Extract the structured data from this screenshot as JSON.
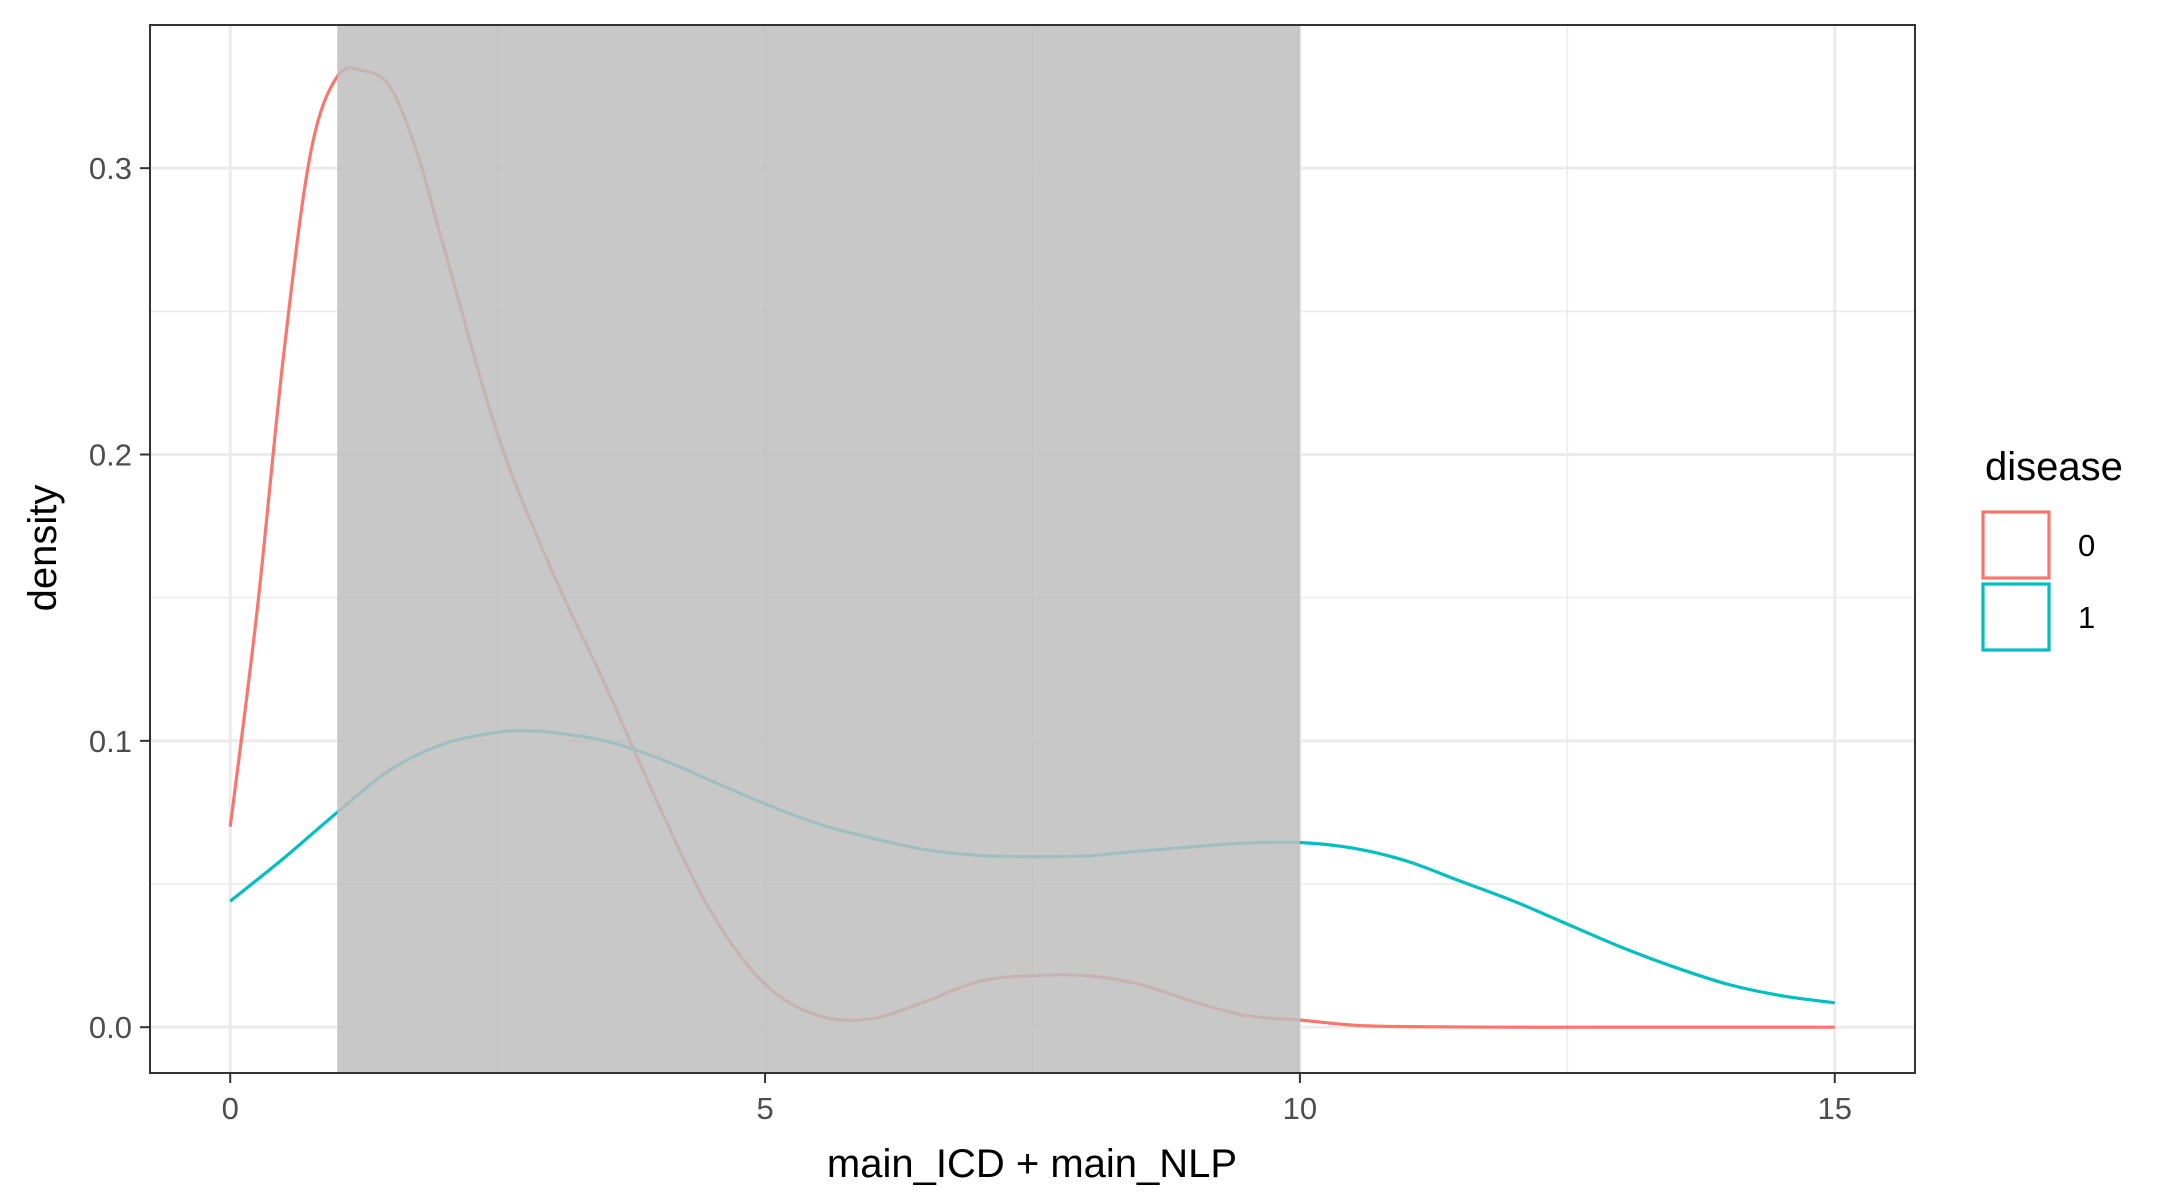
{
  "chart_data": {
    "type": "line",
    "subtype": "density",
    "xlabel": "main_ICD + main_NLP",
    "ylabel": "density",
    "xlim": [
      -0.75,
      15.75
    ],
    "ylim": [
      -0.016,
      0.35
    ],
    "x_ticks": [
      0,
      5,
      10,
      15
    ],
    "x_tick_labels": [
      "0",
      "5",
      "10",
      "15"
    ],
    "y_ticks": [
      0.0,
      0.1,
      0.2,
      0.3
    ],
    "y_tick_labels": [
      "0.0",
      "0.1",
      "0.2",
      "0.3"
    ],
    "grid": true,
    "shaded_region": {
      "x_start": 1,
      "x_end": 10,
      "color": "#bebebe",
      "opacity": 0.85
    },
    "legend": {
      "title": "disease",
      "position": "right",
      "entries": [
        {
          "label": "0",
          "color": "#F8766D"
        },
        {
          "label": "1",
          "color": "#00BFC4"
        }
      ]
    },
    "series": [
      {
        "name": "0",
        "color": "#F8766D",
        "x": [
          0,
          0.25,
          0.5,
          0.75,
          1.0,
          1.25,
          1.5,
          1.75,
          2.0,
          2.5,
          3.0,
          3.5,
          4.0,
          4.5,
          5.0,
          5.5,
          6.0,
          6.5,
          7.0,
          7.5,
          8.0,
          8.5,
          9.0,
          9.5,
          10.0,
          10.5,
          11.0,
          12.0,
          13.0,
          14.0,
          15.0
        ],
        "y": [
          0.07,
          0.145,
          0.235,
          0.305,
          0.332,
          0.334,
          0.328,
          0.305,
          0.272,
          0.207,
          0.16,
          0.12,
          0.078,
          0.04,
          0.015,
          0.004,
          0.003,
          0.009,
          0.016,
          0.018,
          0.018,
          0.015,
          0.009,
          0.004,
          0.0025,
          0.0007,
          0.0002,
          0.0,
          0.0,
          0.0,
          0.0
        ]
      },
      {
        "name": "1",
        "color": "#00BFC4",
        "x": [
          0,
          0.5,
          1.0,
          1.5,
          2.0,
          2.5,
          2.75,
          3.0,
          3.5,
          4.0,
          4.5,
          5.0,
          5.5,
          6.0,
          6.5,
          7.0,
          7.5,
          8.0,
          8.5,
          9.0,
          9.5,
          10.0,
          10.5,
          11.0,
          11.5,
          12.0,
          12.5,
          13.0,
          13.5,
          14.0,
          14.5,
          15.0
        ],
        "y": [
          0.044,
          0.059,
          0.075,
          0.09,
          0.099,
          0.103,
          0.1035,
          0.103,
          0.1,
          0.094,
          0.086,
          0.078,
          0.071,
          0.066,
          0.062,
          0.06,
          0.0595,
          0.0598,
          0.0615,
          0.063,
          0.0643,
          0.0645,
          0.0625,
          0.058,
          0.051,
          0.044,
          0.036,
          0.028,
          0.021,
          0.015,
          0.011,
          0.0085
        ]
      }
    ]
  }
}
